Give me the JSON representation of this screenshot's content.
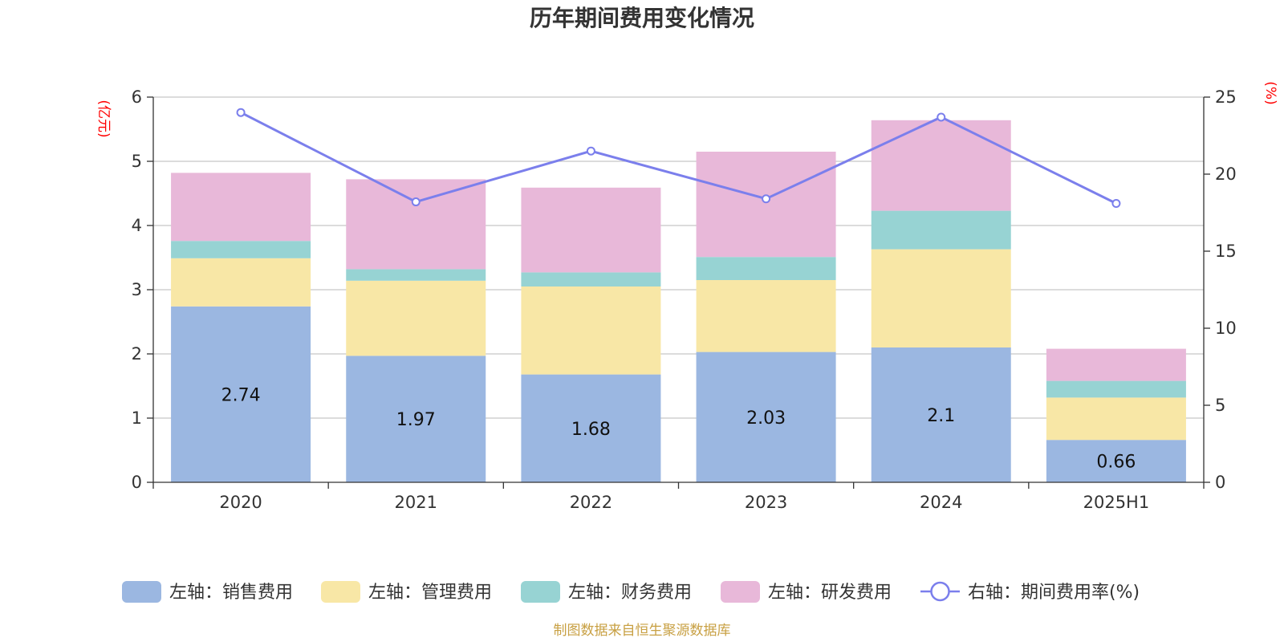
{
  "chart_data": {
    "type": "bar",
    "title": "历年期间费用变化情况",
    "categories": [
      "2020",
      "2021",
      "2022",
      "2023",
      "2024",
      "2025H1"
    ],
    "y_left": {
      "unit": "(亿元)",
      "min": 0,
      "max": 6,
      "ticks": [
        0,
        1,
        2,
        3,
        4,
        5,
        6
      ]
    },
    "y_right": {
      "unit": "(%)",
      "min": 0,
      "max": 25,
      "ticks": [
        0,
        5,
        10,
        15,
        20,
        25
      ]
    },
    "grid": true,
    "legend_position": "bottom",
    "series": [
      {
        "name": "左轴：销售费用",
        "type": "bar",
        "axis": "left",
        "color": "#9bb7e1",
        "values": [
          2.74,
          1.97,
          1.68,
          2.03,
          2.1,
          0.66
        ],
        "labels": [
          "2.74",
          "1.97",
          "1.68",
          "2.03",
          "2.1",
          "0.66"
        ]
      },
      {
        "name": "左轴：管理费用",
        "type": "bar",
        "axis": "left",
        "color": "#f8e7a6",
        "values": [
          0.75,
          1.17,
          1.37,
          1.12,
          1.53,
          0.66
        ]
      },
      {
        "name": "左轴：财务费用",
        "type": "bar",
        "axis": "left",
        "color": "#97d3d3",
        "values": [
          0.27,
          0.18,
          0.22,
          0.36,
          0.6,
          0.26
        ]
      },
      {
        "name": "左轴：研发费用",
        "type": "bar",
        "axis": "left",
        "color": "#e8b8d9",
        "values": [
          1.06,
          1.4,
          1.32,
          1.64,
          1.41,
          0.5
        ]
      },
      {
        "name": "右轴：期间费用率(%)",
        "type": "line",
        "axis": "right",
        "color": "#7b7fec",
        "values": [
          24.0,
          18.2,
          21.5,
          18.4,
          23.7,
          18.1
        ]
      }
    ]
  },
  "source_note": "制图数据来自恒生聚源数据库"
}
